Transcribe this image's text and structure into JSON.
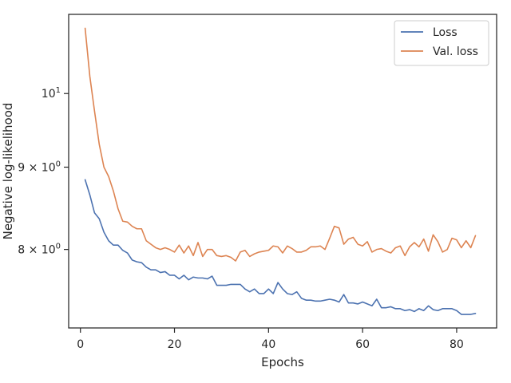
{
  "chart_data": {
    "type": "line",
    "title": "",
    "xlabel": "Epochs",
    "ylabel": "Negative log-likelihood",
    "xlim": [
      -2.5,
      88.5
    ],
    "ylim": [
      7.15,
      11.2
    ],
    "yscale": "log",
    "grid": false,
    "legend_position": "top-right",
    "x_ticks": [
      {
        "value": 0,
        "label": "0"
      },
      {
        "value": 20,
        "label": "20"
      },
      {
        "value": 40,
        "label": "40"
      },
      {
        "value": 60,
        "label": "60"
      },
      {
        "value": 80,
        "label": "80"
      }
    ],
    "y_ticks": [
      {
        "value": 8,
        "base": "8 × 10",
        "exp": "0"
      },
      {
        "value": 9,
        "base": "9 × 10",
        "exp": "0"
      },
      {
        "value": 10,
        "base": "10",
        "exp": "1"
      }
    ],
    "x": [
      1,
      2,
      3,
      4,
      5,
      6,
      7,
      8,
      9,
      10,
      11,
      12,
      13,
      14,
      15,
      16,
      17,
      18,
      19,
      20,
      21,
      22,
      23,
      24,
      25,
      26,
      27,
      28,
      29,
      30,
      31,
      32,
      33,
      34,
      35,
      36,
      37,
      38,
      39,
      40,
      41,
      42,
      43,
      44,
      45,
      46,
      47,
      48,
      49,
      50,
      51,
      52,
      53,
      54,
      55,
      56,
      57,
      58,
      59,
      60,
      61,
      62,
      63,
      64,
      65,
      66,
      67,
      68,
      69,
      70,
      71,
      72,
      73,
      74,
      75,
      76,
      77,
      78,
      79,
      80,
      81,
      82,
      83,
      84
    ],
    "series": [
      {
        "name": "Loss",
        "color": "#4c72b0",
        "values": [
          8.84,
          8.65,
          8.43,
          8.36,
          8.2,
          8.1,
          8.05,
          8.05,
          7.99,
          7.96,
          7.88,
          7.86,
          7.85,
          7.8,
          7.77,
          7.77,
          7.74,
          7.75,
          7.71,
          7.71,
          7.67,
          7.71,
          7.66,
          7.69,
          7.68,
          7.68,
          7.67,
          7.7,
          7.6,
          7.6,
          7.6,
          7.61,
          7.61,
          7.61,
          7.56,
          7.53,
          7.56,
          7.51,
          7.51,
          7.56,
          7.51,
          7.63,
          7.56,
          7.51,
          7.5,
          7.53,
          7.46,
          7.44,
          7.44,
          7.43,
          7.43,
          7.44,
          7.45,
          7.44,
          7.42,
          7.5,
          7.41,
          7.41,
          7.4,
          7.42,
          7.4,
          7.38,
          7.45,
          7.36,
          7.36,
          7.37,
          7.35,
          7.35,
          7.33,
          7.34,
          7.32,
          7.35,
          7.33,
          7.38,
          7.34,
          7.33,
          7.35,
          7.35,
          7.35,
          7.33,
          7.29,
          7.29,
          7.29,
          7.3
        ]
      },
      {
        "name": "Val. loss",
        "color": "#dd8452",
        "values": [
          10.98,
          10.25,
          9.75,
          9.3,
          9.0,
          8.88,
          8.7,
          8.48,
          8.33,
          8.32,
          8.27,
          8.24,
          8.24,
          8.1,
          8.06,
          8.02,
          8.0,
          8.02,
          8.0,
          7.97,
          8.05,
          7.96,
          8.04,
          7.93,
          8.08,
          7.92,
          8.0,
          8.0,
          7.93,
          7.92,
          7.93,
          7.91,
          7.87,
          7.97,
          7.99,
          7.92,
          7.95,
          7.97,
          7.98,
          7.99,
          8.04,
          8.03,
          7.96,
          8.04,
          8.01,
          7.97,
          7.97,
          7.99,
          8.03,
          8.03,
          8.04,
          8.0,
          8.13,
          8.27,
          8.25,
          8.06,
          8.12,
          8.14,
          8.06,
          8.04,
          8.09,
          7.97,
          8.0,
          8.01,
          7.98,
          7.96,
          8.02,
          8.04,
          7.93,
          8.03,
          8.08,
          8.03,
          8.12,
          7.98,
          8.17,
          8.09,
          7.97,
          8.0,
          8.13,
          8.11,
          8.02,
          8.1,
          8.02,
          8.16
        ]
      }
    ]
  }
}
